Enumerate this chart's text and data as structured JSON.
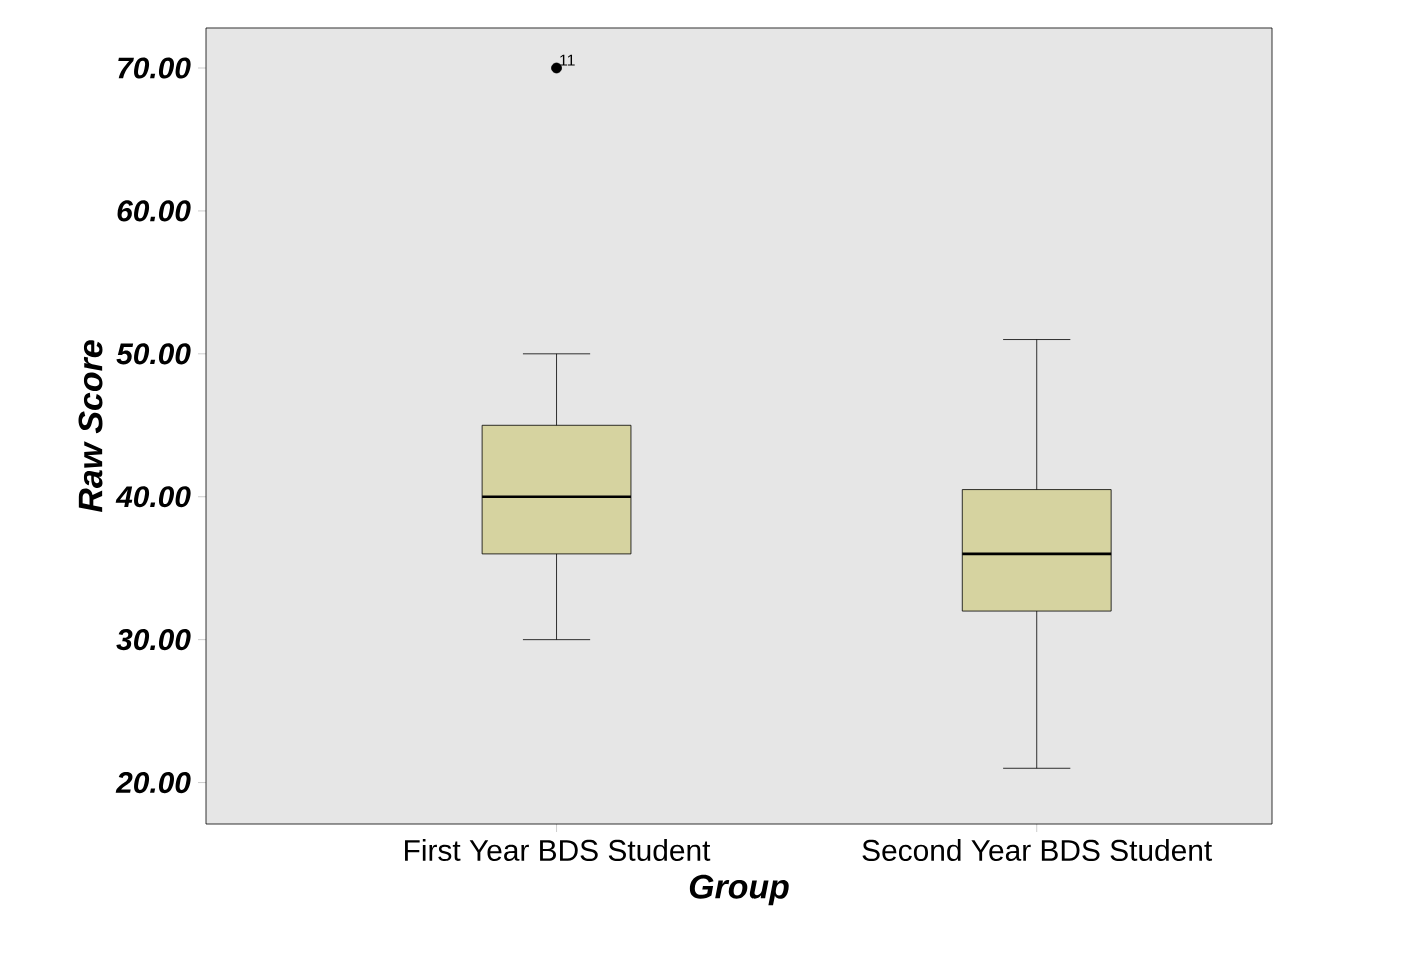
{
  "chart_data": {
    "type": "box",
    "xlabel": "Group",
    "ylabel": "Raw Score",
    "categories": [
      "First Year BDS Student",
      "Second Year BDS Student"
    ],
    "boxes": [
      {
        "low": 30,
        "q1": 36,
        "median": 40,
        "q3": 45,
        "high": 50,
        "outliers": [
          70
        ]
      },
      {
        "low": 21,
        "q1": 32,
        "median": 36,
        "q3": 40.5,
        "high": 51
      }
    ],
    "color": "#d6d3a0",
    "ylim": [
      17.1,
      72.8
    ],
    "yticks": [
      {
        "value": 20,
        "label": "20.00"
      },
      {
        "value": 30,
        "label": "30.00"
      },
      {
        "value": 40,
        "label": "40.00"
      },
      {
        "value": 50,
        "label": "50.00"
      },
      {
        "value": 60,
        "label": "60.00"
      },
      {
        "value": 70,
        "label": "70.00"
      }
    ],
    "annotations": [
      "11"
    ],
    "tick_labels": true
  }
}
